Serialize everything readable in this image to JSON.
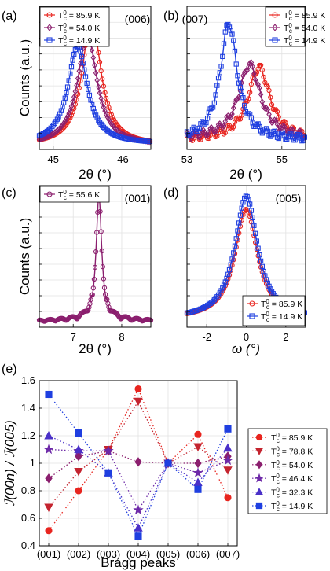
{
  "chart_data": [
    {
      "panel": "(a)",
      "type": "line",
      "annotation": "(006)",
      "xlabel": "2θ (°)",
      "ylabel": "Counts (a.u.)",
      "xlim": [
        44.8,
        46.4
      ],
      "ylim": [
        0,
        1.08
      ],
      "xticks": [
        "45",
        "46"
      ],
      "grid": true,
      "legend": "top-left",
      "series": [
        {
          "name": "85.9 K",
          "color": "#e8251f",
          "marker": "circle",
          "center": 45.55,
          "width": 0.16,
          "base": 0.03
        },
        {
          "name": "54.0 K",
          "color": "#8b1f6e",
          "marker": "diamond",
          "center": 45.49,
          "width": 0.17,
          "base": 0.03,
          "peak": 0.86
        },
        {
          "name": "14.9 K",
          "color": "#1f3fe0",
          "marker": "square",
          "center": 45.35,
          "width": 0.17,
          "base": 0.04,
          "peak": 0.78
        }
      ]
    },
    {
      "panel": "(b)",
      "type": "line",
      "annotation": "(007)",
      "xlabel": "2θ (°)",
      "ylabel": "",
      "xlim": [
        53.0,
        55.5
      ],
      "ylim": [
        0,
        1.08
      ],
      "xticks": [
        "53",
        "55"
      ],
      "grid": true,
      "legend": "top-right",
      "series": [
        {
          "name": "85.9 K",
          "color": "#e8251f",
          "marker": "circle",
          "center": 54.52,
          "width": 0.28,
          "base": 0.07,
          "peak": 0.62
        },
        {
          "name": "54.0 K",
          "color": "#8b1f6e",
          "marker": "diamond",
          "center": 54.32,
          "width": 0.28,
          "base": 0.08,
          "peak": 0.64
        },
        {
          "name": "14.9 K",
          "color": "#1f3fe0",
          "marker": "square",
          "center": 53.88,
          "width": 0.22,
          "base": 0.07,
          "peak": 0.95
        }
      ]
    },
    {
      "panel": "(c)",
      "type": "line",
      "annotation": "(001)",
      "xlabel": "2θ (°)",
      "ylabel": "Counts (a.u.)",
      "xlim": [
        6.3,
        8.6
      ],
      "ylim": [
        0,
        1.08
      ],
      "xticks": [
        "7",
        "8"
      ],
      "grid": true,
      "legend": "top-left",
      "series": [
        {
          "name": "55.6 K",
          "color": "#8b1f6e",
          "marker": "circle",
          "center": 7.53,
          "width": 0.07,
          "base": 0.04
        }
      ]
    },
    {
      "panel": "(d)",
      "type": "line",
      "annotation": "(005)",
      "xlabel": "ω (°)",
      "ylabel": "",
      "xlim": [
        -3.0,
        3.0
      ],
      "ylim": [
        0,
        1.08
      ],
      "xticks": [
        "-2",
        "0",
        "2"
      ],
      "grid": true,
      "legend": "bottom-right",
      "series": [
        {
          "name": "85.9 K",
          "color": "#e8251f",
          "marker": "circle",
          "center": 0.0,
          "width": 0.7,
          "base": 0.06,
          "peak": 0.9
        },
        {
          "name": "14.9 K",
          "color": "#1f3fe0",
          "marker": "square",
          "center": 0.0,
          "width": 0.7,
          "base": 0.06
        }
      ]
    },
    {
      "panel": "(e)",
      "type": "line",
      "xlabel": "Bragg peaks",
      "ylabel": "ℐ(00n) / ℐ(005)",
      "categories": [
        "(001)",
        "(002)",
        "(003)",
        "(004)",
        "(005)",
        "(006)",
        "(007)"
      ],
      "ylim": [
        0.4,
        1.6
      ],
      "yticks": [
        "0.4",
        "0.6",
        "0.8",
        "1",
        "1.2",
        "1.4",
        "1.6"
      ],
      "grid": true,
      "legend": "right",
      "series": [
        {
          "name": "85.9 K",
          "color": "#e8251f",
          "marker": "circle",
          "values": [
            0.51,
            0.8,
            1.1,
            1.54,
            1.0,
            1.21,
            0.75
          ]
        },
        {
          "name": "78.8 K",
          "color": "#c4242f",
          "marker": "triangle-down",
          "values": [
            0.68,
            0.94,
            1.1,
            1.45,
            1.0,
            1.12,
            0.95
          ]
        },
        {
          "name": "54.0 K",
          "color": "#8b1f6e",
          "marker": "diamond",
          "values": [
            0.89,
            1.05,
            1.09,
            1.01,
            1.0,
            1.0,
            1.05
          ]
        },
        {
          "name": "46.4 K",
          "color": "#6e2aa8",
          "marker": "star",
          "values": [
            1.1,
            1.09,
            1.09,
            0.66,
            1.0,
            0.93,
            1.02
          ]
        },
        {
          "name": "32.3 K",
          "color": "#4a30c8",
          "marker": "triangle-up",
          "values": [
            1.2,
            1.1,
            0.93,
            0.53,
            1.0,
            0.86,
            1.11
          ]
        },
        {
          "name": "14.9 K",
          "color": "#1f3fe0",
          "marker": "square",
          "values": [
            1.5,
            1.22,
            0.93,
            0.47,
            1.0,
            0.81,
            1.25
          ]
        }
      ]
    }
  ]
}
